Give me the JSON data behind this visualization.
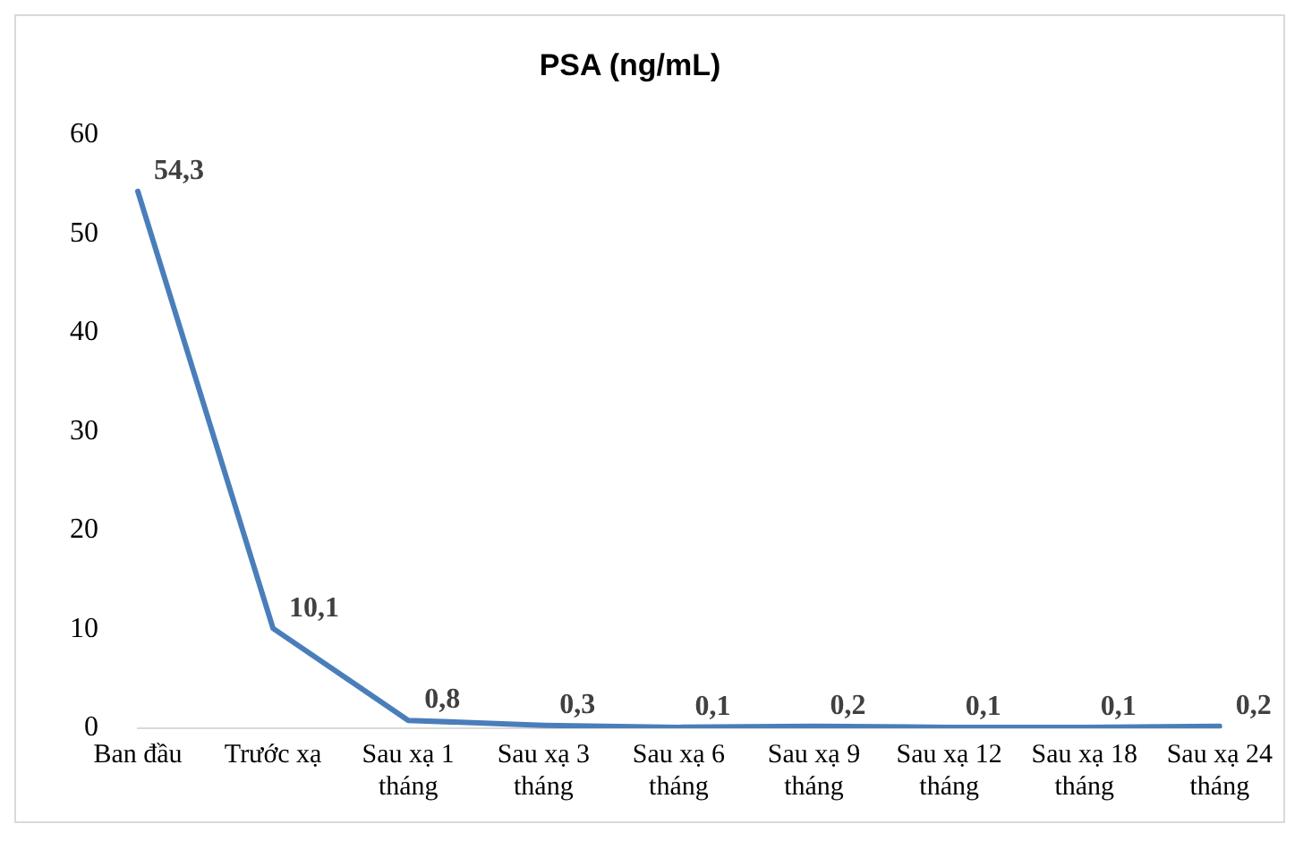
{
  "chart_data": {
    "type": "line",
    "title": "PSA (ng/mL)",
    "categories": [
      "Ban đầu",
      "Trước xạ",
      "Sau xạ 1 tháng",
      "Sau xạ 3 tháng",
      "Sau xạ 6 tháng",
      "Sau xạ 9 tháng",
      "Sau xạ 12 tháng",
      "Sau xạ 18 tháng",
      "Sau xạ 24 tháng"
    ],
    "series": [
      {
        "color": "#4a7ebb",
        "values": [
          54.3,
          10.1,
          0.8,
          0.3,
          0.1,
          0.2,
          0.1,
          0.1,
          0.2
        ]
      }
    ],
    "value_labels": [
      "54,3",
      "10,1",
      "0,8",
      "0,3",
      "0,1",
      "0,2",
      "0,1",
      "0,1",
      "0,2"
    ],
    "ylim": [
      0,
      60
    ],
    "yticks": [
      0,
      10,
      20,
      30,
      40,
      50,
      60
    ],
    "grid": false,
    "legend": false,
    "marker": "none",
    "line_style": "solid"
  }
}
